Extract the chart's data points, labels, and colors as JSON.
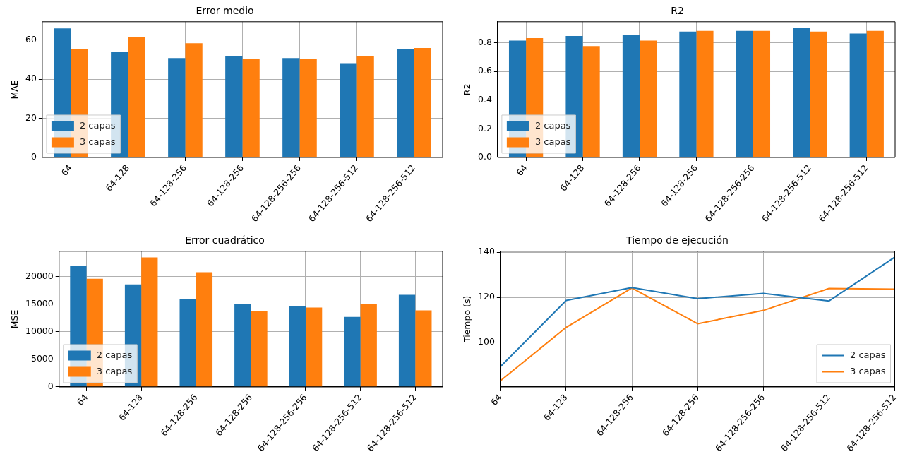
{
  "chart_data": [
    {
      "type": "bar",
      "title": "Error medio",
      "ylabel": "MAE",
      "categories": [
        "64",
        "64-128",
        "64-128-256",
        "64-128-256",
        "64-128-256-256",
        "64-128-256-512",
        "64-128-256-512"
      ],
      "series": [
        {
          "name": "2 capas",
          "color": "#1f77b4",
          "values": [
            66.0,
            54.0,
            50.8,
            51.8,
            50.8,
            48.2,
            55.5
          ]
        },
        {
          "name": "3 capas",
          "color": "#ff7f0e",
          "values": [
            55.5,
            61.4,
            58.4,
            50.5,
            50.5,
            51.8,
            56.0
          ]
        }
      ],
      "ylim": [
        0,
        69.4
      ],
      "yticks": [
        0,
        20,
        40,
        60
      ],
      "grid": true,
      "legend": "bottom left"
    },
    {
      "type": "bar",
      "title": "R2",
      "ylabel": "R2",
      "categories": [
        "64",
        "64-128",
        "64-128-256",
        "64-128-256",
        "64-128-256-256",
        "64-128-256-512",
        "64-128-256-512"
      ],
      "series": [
        {
          "name": "2 capas",
          "color": "#1f77b4",
          "values": [
            0.814,
            0.846,
            0.852,
            0.877,
            0.882,
            0.903,
            0.864
          ]
        },
        {
          "name": "3 capas",
          "color": "#ff7f0e",
          "values": [
            0.832,
            0.777,
            0.814,
            0.882,
            0.882,
            0.877,
            0.882
          ]
        }
      ],
      "ylim": [
        0,
        0.946
      ],
      "yticks": [
        {
          "value": 0,
          "label": "0.0"
        },
        {
          "value": 0.2,
          "label": "0.2"
        },
        {
          "value": 0.4,
          "label": "0.4"
        },
        {
          "value": 0.6,
          "label": "0.6"
        },
        {
          "value": 0.8,
          "label": "0.8"
        }
      ],
      "grid": true,
      "legend": "bottom left"
    },
    {
      "type": "bar",
      "title": "Error cuadrático",
      "ylabel": "MSE",
      "categories": [
        "64",
        "64-128",
        "64-128-256",
        "64-128-256",
        "64-128-256-256",
        "64-128-256-512",
        "64-128-256-512"
      ],
      "series": [
        {
          "name": "2 capas",
          "color": "#1f77b4",
          "values": [
            21900,
            18600,
            16000,
            15100,
            14700,
            12700,
            16700
          ]
        },
        {
          "name": "3 capas",
          "color": "#ff7f0e",
          "values": [
            19600,
            23500,
            20800,
            13800,
            14400,
            15100,
            13900
          ]
        }
      ],
      "ylim": [
        0,
        24600
      ],
      "yticks": [
        0,
        5000,
        10000,
        15000,
        20000
      ],
      "grid": true,
      "legend": "bottom left"
    },
    {
      "type": "line",
      "title": "Tiempo de ejecución",
      "ylabel": "Tiempo (s)",
      "categories": [
        "64",
        "64-128",
        "64-128-256",
        "64-128-256",
        "64-128-256-256",
        "64-128-256-512",
        "64-128-256-512"
      ],
      "series": [
        {
          "name": "2 capas",
          "color": "#1f77b4",
          "values": [
            89.3,
            118.6,
            124.3,
            119.4,
            121.7,
            118.4,
            137.8
          ]
        },
        {
          "name": "3 capas",
          "color": "#ff7f0e",
          "values": [
            83.0,
            106.7,
            124.1,
            108.3,
            114.2,
            123.9,
            123.6
          ]
        }
      ],
      "ylim": [
        80.3,
        140.4
      ],
      "yticks": [
        100,
        120,
        140
      ],
      "grid": true,
      "legend": "bottom right"
    }
  ]
}
